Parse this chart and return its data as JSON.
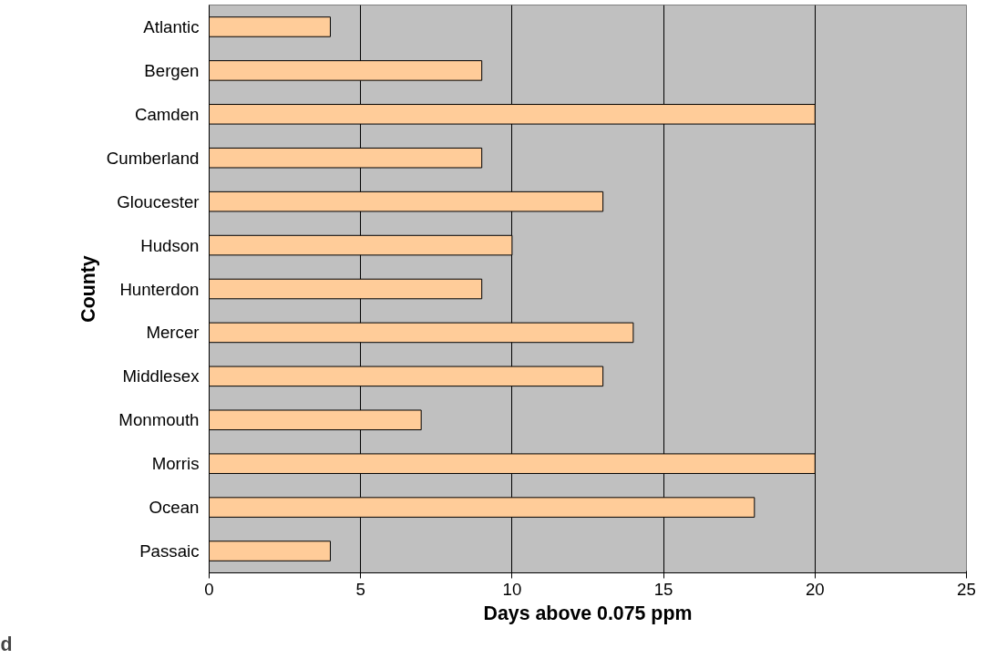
{
  "chart_data": {
    "type": "bar",
    "orientation": "horizontal",
    "xlabel": "Days above 0.075 ppm",
    "ylabel": "County",
    "categories": [
      "Atlantic",
      "Bergen",
      "Camden",
      "Cumberland",
      "Gloucester",
      "Hudson",
      "Hunterdon",
      "Mercer",
      "Middlesex",
      "Monmouth",
      "Morris",
      "Ocean",
      "Passaic"
    ],
    "values": [
      4,
      9,
      20,
      9,
      13,
      10,
      9,
      14,
      13,
      7,
      20,
      18,
      4
    ],
    "color": "#ffcc99",
    "xlim": [
      0,
      25
    ],
    "xticks": [
      0,
      5,
      10,
      15,
      20,
      25
    ],
    "grid": "x",
    "annotations": [
      "d"
    ]
  }
}
